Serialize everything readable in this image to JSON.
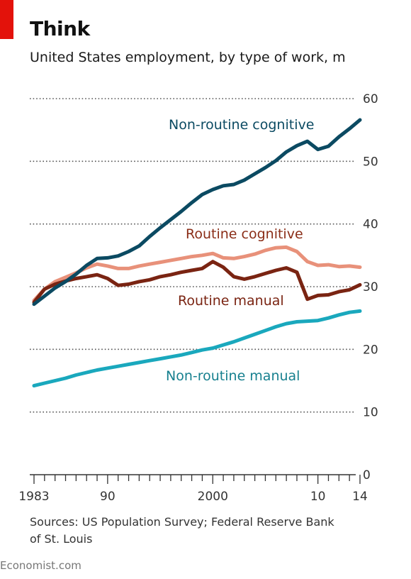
{
  "header": {
    "title": "Think",
    "subtitle": "United States employment, by type of work, m"
  },
  "footer": {
    "source": "Sources: US Population Survey; Federal Reserve Bank of St. Louis",
    "brand": "Economist.com"
  },
  "colors": {
    "brand_red": "#e3120b",
    "non_routine_cognitive": "#0b4a62",
    "routine_cognitive": "#e8917a",
    "routine_manual": "#7a2412",
    "non_routine_manual": "#1aa8bd",
    "grid": "#555555"
  },
  "chart_data": {
    "type": "line",
    "title": "Think",
    "subtitle": "United States employment, by type of work, m",
    "xlabel": "",
    "ylabel": "",
    "xlim": [
      1983,
      2014
    ],
    "ylim": [
      0,
      60
    ],
    "x_ticks": [
      1983,
      1990,
      2000,
      2010,
      2014
    ],
    "x_tick_labels": [
      "1983",
      "90",
      "2000",
      "10",
      "14"
    ],
    "y_ticks": [
      0,
      10,
      20,
      30,
      40,
      50,
      60
    ],
    "y_tick_labels": [
      "0",
      "10",
      "20",
      "30",
      "40",
      "50",
      "60"
    ],
    "grid": "horizontal dotted",
    "legend": "inline labels",
    "series": [
      {
        "name": "Non-routine cognitive",
        "color": "#0b4a62",
        "x": [
          1983,
          1984,
          1985,
          1986,
          1987,
          1988,
          1989,
          1990,
          1991,
          1992,
          1993,
          1994,
          1995,
          1996,
          1997,
          1998,
          1999,
          2000,
          2001,
          2002,
          2003,
          2004,
          2005,
          2006,
          2007,
          2008,
          2009,
          2010,
          2011,
          2012,
          2013,
          2014
        ],
        "y": [
          27.2,
          28.5,
          29.8,
          30.8,
          32.0,
          33.4,
          34.5,
          34.6,
          34.9,
          35.6,
          36.5,
          38.0,
          39.4,
          40.7,
          42.0,
          43.4,
          44.7,
          45.5,
          46.1,
          46.3,
          47.0,
          48.0,
          49.0,
          50.1,
          51.5,
          52.5,
          53.2,
          51.9,
          52.4,
          53.9,
          55.2,
          56.6
        ]
      },
      {
        "name": "Routine cognitive",
        "color": "#e8917a",
        "x": [
          1983,
          1984,
          1985,
          1986,
          1987,
          1988,
          1989,
          1990,
          1991,
          1992,
          1993,
          1994,
          1995,
          1996,
          1997,
          1998,
          1999,
          2000,
          2001,
          2002,
          2003,
          2004,
          2005,
          2006,
          2007,
          2008,
          2009,
          2010,
          2011,
          2012,
          2013,
          2014
        ],
        "y": [
          27.8,
          29.6,
          30.8,
          31.5,
          32.2,
          33.0,
          33.6,
          33.3,
          32.9,
          32.9,
          33.3,
          33.6,
          33.9,
          34.2,
          34.5,
          34.8,
          35.0,
          35.3,
          34.6,
          34.5,
          34.8,
          35.2,
          35.8,
          36.2,
          36.3,
          35.6,
          34.0,
          33.4,
          33.5,
          33.2,
          33.3,
          33.1
        ]
      },
      {
        "name": "Routine manual",
        "color": "#7a2412",
        "x": [
          1983,
          1984,
          1985,
          1986,
          1987,
          1988,
          1989,
          1990,
          1991,
          1992,
          1993,
          1994,
          1995,
          1996,
          1997,
          1998,
          1999,
          2000,
          2001,
          2002,
          2003,
          2004,
          2005,
          2006,
          2007,
          2008,
          2009,
          2010,
          2011,
          2012,
          2013,
          2014
        ],
        "y": [
          27.5,
          29.6,
          30.4,
          30.9,
          31.3,
          31.6,
          31.9,
          31.3,
          30.2,
          30.4,
          30.8,
          31.1,
          31.6,
          31.9,
          32.3,
          32.6,
          32.9,
          34.0,
          33.1,
          31.6,
          31.2,
          31.6,
          32.1,
          32.6,
          33.0,
          32.3,
          28.0,
          28.6,
          28.7,
          29.2,
          29.5,
          30.3
        ]
      },
      {
        "name": "Non-routine manual",
        "color": "#1aa8bd",
        "x": [
          1983,
          1984,
          1985,
          1986,
          1987,
          1988,
          1989,
          1990,
          1991,
          1992,
          1993,
          1994,
          1995,
          1996,
          1997,
          1998,
          1999,
          2000,
          2001,
          2002,
          2003,
          2004,
          2005,
          2006,
          2007,
          2008,
          2009,
          2010,
          2011,
          2012,
          2013,
          2014
        ],
        "y": [
          14.2,
          14.6,
          15.0,
          15.4,
          15.9,
          16.3,
          16.7,
          17.0,
          17.3,
          17.6,
          17.9,
          18.2,
          18.5,
          18.8,
          19.1,
          19.5,
          19.9,
          20.2,
          20.7,
          21.2,
          21.8,
          22.4,
          23.0,
          23.6,
          24.1,
          24.4,
          24.5,
          24.6,
          25.0,
          25.5,
          25.9,
          26.1
        ]
      }
    ]
  }
}
